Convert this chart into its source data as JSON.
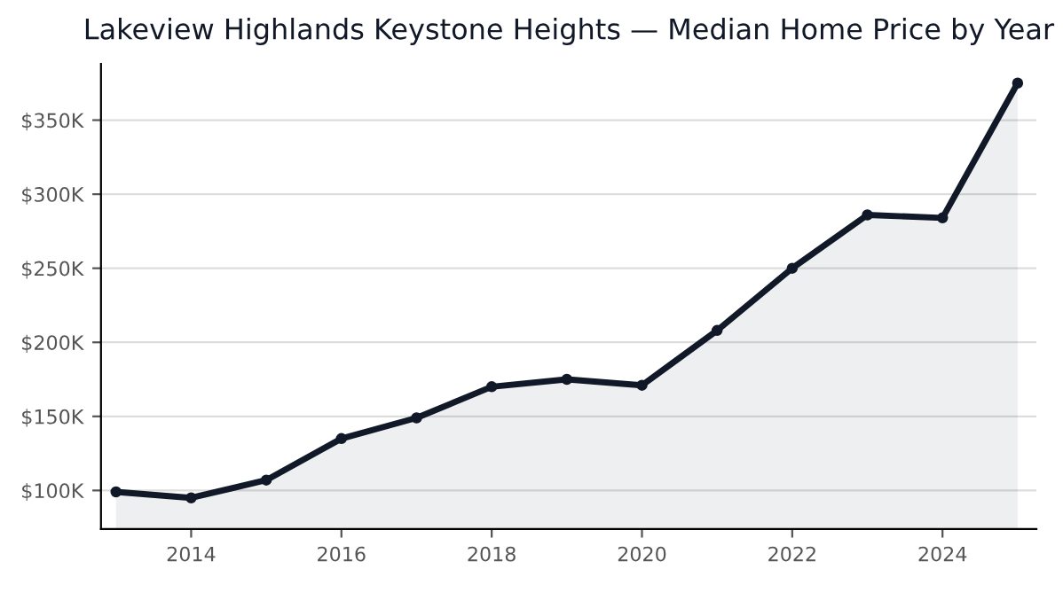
{
  "chart_data": {
    "type": "area",
    "title": "Lakeview Highlands Keystone Heights — Median Home Price by Year",
    "x": [
      2013,
      2014,
      2015,
      2016,
      2017,
      2018,
      2019,
      2020,
      2021,
      2022,
      2023,
      2024,
      2025
    ],
    "series": [
      {
        "color": "#111827",
        "values": [
          99,
          95,
          107,
          135,
          149,
          170,
          175,
          171,
          208,
          250,
          286,
          284,
          375
        ]
      }
    ],
    "xlim": [
      2012.8,
      2025.25
    ],
    "xticks": [
      2014,
      2016,
      2018,
      2020,
      2022,
      2024
    ],
    "ylim": [
      74,
      388
    ],
    "yticks": [
      {
        "value": 100,
        "label": "$100K"
      },
      {
        "value": 150,
        "label": "$150K"
      },
      {
        "value": 200,
        "label": "$200K"
      },
      {
        "value": 250,
        "label": "$250K"
      },
      {
        "value": 300,
        "label": "$300K"
      },
      {
        "value": 350,
        "label": "$350K"
      }
    ],
    "grid": "y",
    "marker": "circle",
    "line_style": "solid"
  }
}
